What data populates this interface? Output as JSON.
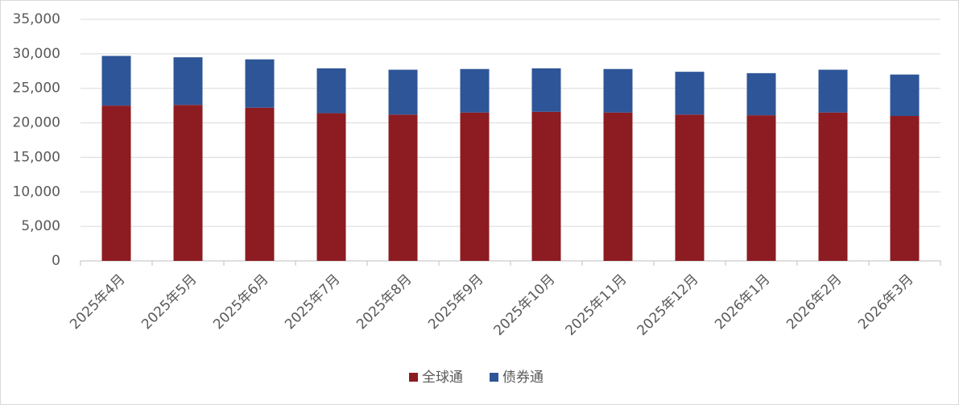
{
  "chart_data": {
    "type": "stacked-bar",
    "categories": [
      "2025年4月",
      "2025年5月",
      "2025年6月",
      "2025年7月",
      "2025年8月",
      "2025年9月",
      "2025年10月",
      "2025年11月",
      "2025年12月",
      "2026年1月",
      "2026年2月",
      "2026年3月"
    ],
    "series": [
      {
        "name": "全球通",
        "color": "#8c1c22",
        "values": [
          22500,
          22600,
          22200,
          21400,
          21200,
          21500,
          21600,
          21500,
          21200,
          21100,
          21500,
          21000
        ]
      },
      {
        "name": "债券通",
        "color": "#2e5597",
        "values": [
          7200,
          6900,
          7000,
          6500,
          6500,
          6300,
          6300,
          6300,
          6200,
          6100,
          6200,
          6000
        ]
      }
    ],
    "ylim": [
      0,
      35000
    ],
    "yticks": [
      0,
      {
        "value": 5000,
        "label": "5,000"
      },
      {
        "value": 10000,
        "label": "10,000"
      },
      {
        "value": 15000,
        "label": "15,000"
      },
      {
        "value": 20000,
        "label": "20,000"
      },
      {
        "value": 25000,
        "label": "25,000"
      },
      {
        "value": 30000,
        "label": "30,000"
      },
      {
        "value": 35000,
        "label": "35,000"
      }
    ],
    "grid": true,
    "legend": "bottom"
  }
}
